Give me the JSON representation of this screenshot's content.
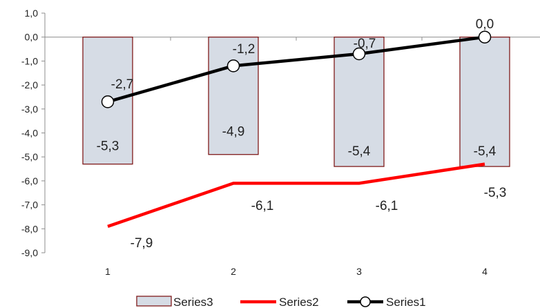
{
  "chart_data": {
    "type": "bar",
    "categories": [
      "1",
      "2",
      "3",
      "4"
    ],
    "y_ticks": [
      "1,0",
      "0,0",
      "-1,0",
      "-2,0",
      "-3,0",
      "-4,0",
      "-5,0",
      "-6,0",
      "-7,0",
      "-8,0",
      "-9,0"
    ],
    "ylim": [
      -9,
      1
    ],
    "grid": false,
    "legend_position": "bottom",
    "series": [
      {
        "name": "Series3",
        "kind": "bar",
        "values": [
          -5.3,
          -4.9,
          -5.4,
          -5.4
        ],
        "labels": [
          "-5,3",
          "-4,9",
          "-5,4",
          "-5,4"
        ],
        "fill": "#D6DCE5",
        "stroke": "#7F1A1A"
      },
      {
        "name": "Series2",
        "kind": "line",
        "values": [
          -7.9,
          -6.1,
          -6.1,
          -5.3
        ],
        "labels": [
          "-7,9",
          "-6,1",
          "-6,1",
          "-5,3"
        ],
        "color": "#FF0000"
      },
      {
        "name": "Series1",
        "kind": "line-marker",
        "values": [
          -2.7,
          -1.2,
          -0.7,
          0.0
        ],
        "labels": [
          "-2,7",
          "-1,2",
          "-0,7",
          "0,0"
        ],
        "color": "#000000"
      }
    ]
  }
}
